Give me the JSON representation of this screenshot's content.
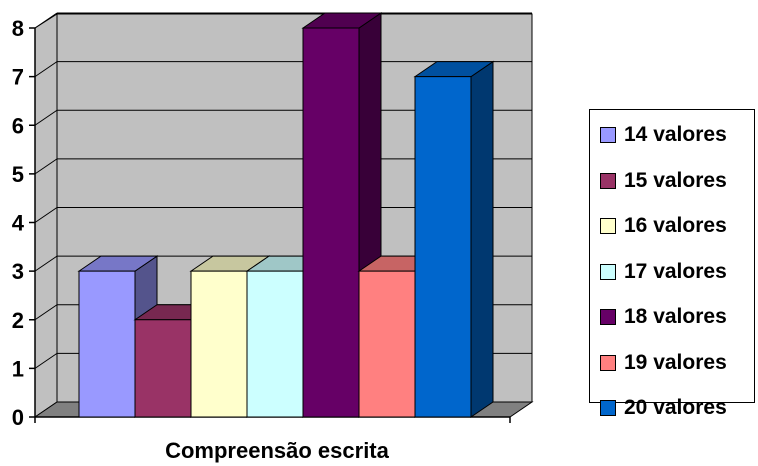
{
  "chart_data": {
    "type": "bar",
    "style": "3d-clustered-column",
    "categories": [
      "Compreensão escrita"
    ],
    "xlabel": "Compreensão escrita",
    "ylabel": "",
    "title": "",
    "ylim": [
      0,
      8
    ],
    "yticks": [
      "0",
      "1",
      "2",
      "3",
      "4",
      "5",
      "6",
      "7",
      "8"
    ],
    "grid": true,
    "legend_position": "right",
    "series": [
      {
        "name": "14 valores",
        "values": [
          3
        ],
        "color": "#9999FF"
      },
      {
        "name": "15 valores",
        "values": [
          2
        ],
        "color": "#993366"
      },
      {
        "name": "16 valores",
        "values": [
          3
        ],
        "color": "#FFFFCC"
      },
      {
        "name": "17 valores",
        "values": [
          3
        ],
        "color": "#CCFFFF"
      },
      {
        "name": "18 valores",
        "values": [
          8
        ],
        "color": "#660066"
      },
      {
        "name": "19 valores",
        "values": [
          3
        ],
        "color": "#FF8080"
      },
      {
        "name": "20 valores",
        "values": [
          7
        ],
        "color": "#0066CC"
      }
    ]
  }
}
